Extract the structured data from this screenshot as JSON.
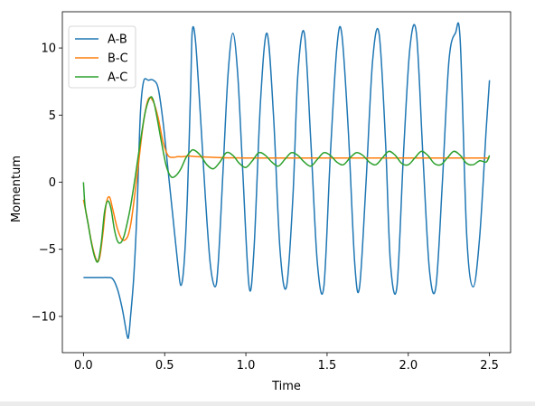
{
  "chart_data": {
    "type": "line",
    "title": "",
    "xlabel": "Time",
    "ylabel": "Momentum",
    "xlim": [
      -0.13,
      2.63
    ],
    "ylim": [
      -12.7,
      12.7
    ],
    "xticks": [
      0.0,
      0.5,
      1.0,
      1.5,
      2.0,
      2.5
    ],
    "xtick_labels": [
      "0.0",
      "0.5",
      "1.0",
      "1.5",
      "2.0",
      "2.5"
    ],
    "yticks": [
      -10,
      -5,
      0,
      5,
      10
    ],
    "ytick_labels": [
      "−10",
      "−5",
      "0",
      "5",
      "10"
    ],
    "legend_position": "top-left",
    "series": [
      {
        "name": "A-B",
        "color": "#1f77b4",
        "x": [
          0.0,
          0.05,
          0.1,
          0.15,
          0.18,
          0.21,
          0.24,
          0.27,
          0.28,
          0.29,
          0.31,
          0.33,
          0.35,
          0.37,
          0.4,
          0.43,
          0.46,
          0.49,
          0.52,
          0.55,
          0.58,
          0.6,
          0.62,
          0.64,
          0.66,
          0.67,
          0.69,
          0.72,
          0.75,
          0.78,
          0.81,
          0.83,
          0.86,
          0.89,
          0.92,
          0.95,
          0.98,
          1.02,
          1.05,
          1.09,
          1.13,
          1.17,
          1.21,
          1.25,
          1.29,
          1.32,
          1.36,
          1.4,
          1.44,
          1.48,
          1.52,
          1.56,
          1.59,
          1.63,
          1.67,
          1.7,
          1.74,
          1.78,
          1.82,
          1.86,
          1.89,
          1.93,
          1.97,
          2.01,
          2.05,
          2.09,
          2.13,
          2.17,
          2.21,
          2.25,
          2.29,
          2.32,
          2.36,
          2.4,
          2.44,
          2.48,
          2.5
        ],
        "y": [
          -7.1,
          -7.1,
          -7.1,
          -7.1,
          -7.2,
          -8.0,
          -9.5,
          -11.5,
          -11.3,
          -10.0,
          -7.0,
          -2.0,
          5.0,
          7.5,
          7.6,
          7.6,
          7.0,
          4.5,
          1.0,
          -2.5,
          -6.0,
          -7.7,
          -6.0,
          -1.0,
          7.0,
          11.3,
          10.5,
          5.0,
          -1.0,
          -6.0,
          -7.8,
          -6.0,
          1.0,
          8.0,
          11.1,
          8.0,
          1.0,
          -7.8,
          -5.0,
          6.0,
          11.1,
          5.0,
          -5.0,
          -7.8,
          -1.0,
          8.0,
          11.1,
          3.0,
          -6.0,
          -7.8,
          2.0,
          10.0,
          11.1,
          4.0,
          -6.0,
          -7.8,
          0.0,
          9.0,
          11.1,
          3.0,
          -6.0,
          -7.8,
          2.0,
          10.0,
          11.1,
          2.0,
          -6.5,
          -7.8,
          0.0,
          9.0,
          11.1,
          10.5,
          -4.0,
          -7.8,
          -4.0,
          4.0,
          7.6
        ]
      },
      {
        "name": "B-C",
        "color": "#ff7f0e",
        "x": [
          0.0,
          0.02,
          0.05,
          0.08,
          0.1,
          0.12,
          0.14,
          0.16,
          0.18,
          0.21,
          0.24,
          0.27,
          0.29,
          0.31,
          0.34,
          0.37,
          0.4,
          0.43,
          0.46,
          0.49,
          0.52,
          0.55,
          0.58,
          0.61,
          0.65,
          0.7,
          0.8,
          1.0,
          1.5,
          2.0,
          2.5
        ],
        "y": [
          -1.3,
          -2.5,
          -4.5,
          -5.8,
          -5.6,
          -3.8,
          -1.6,
          -1.1,
          -2.0,
          -3.5,
          -4.3,
          -4.1,
          -3.2,
          -1.5,
          1.5,
          4.5,
          6.2,
          6.0,
          4.8,
          3.0,
          2.0,
          1.85,
          1.9,
          1.9,
          1.95,
          1.9,
          1.85,
          1.8,
          1.8,
          1.8,
          1.8
        ]
      },
      {
        "name": "A-C",
        "color": "#2ca02c",
        "x": [
          0.0,
          0.01,
          0.03,
          0.05,
          0.07,
          0.09,
          0.11,
          0.13,
          0.15,
          0.17,
          0.19,
          0.21,
          0.23,
          0.25,
          0.27,
          0.29,
          0.32,
          0.35,
          0.38,
          0.41,
          0.43,
          0.45,
          0.48,
          0.51,
          0.54,
          0.57,
          0.6,
          0.63,
          0.66,
          0.68,
          0.72,
          0.76,
          0.8,
          0.84,
          0.88,
          0.92,
          0.96,
          1.0,
          1.04,
          1.08,
          1.12,
          1.16,
          1.2,
          1.24,
          1.28,
          1.32,
          1.36,
          1.4,
          1.44,
          1.48,
          1.52,
          1.56,
          1.6,
          1.64,
          1.68,
          1.72,
          1.76,
          1.8,
          1.84,
          1.88,
          1.92,
          1.96,
          2.0,
          2.04,
          2.08,
          2.12,
          2.16,
          2.2,
          2.24,
          2.28,
          2.32,
          2.36,
          2.4,
          2.44,
          2.48,
          2.5
        ],
        "y": [
          0.0,
          -1.8,
          -3.2,
          -4.6,
          -5.6,
          -5.9,
          -4.5,
          -2.2,
          -1.4,
          -2.0,
          -3.5,
          -4.4,
          -4.5,
          -4.0,
          -3.0,
          -1.8,
          0.5,
          3.0,
          5.2,
          6.3,
          6.1,
          5.0,
          3.0,
          1.2,
          0.4,
          0.5,
          1.0,
          1.8,
          2.3,
          2.4,
          2.0,
          1.3,
          1.0,
          1.5,
          2.2,
          2.0,
          1.4,
          1.1,
          1.6,
          2.2,
          2.0,
          1.5,
          1.2,
          1.7,
          2.2,
          2.0,
          1.5,
          1.2,
          1.7,
          2.2,
          2.0,
          1.5,
          1.3,
          1.8,
          2.2,
          2.0,
          1.5,
          1.3,
          1.8,
          2.3,
          2.0,
          1.4,
          1.3,
          1.8,
          2.3,
          2.0,
          1.4,
          1.3,
          1.8,
          2.3,
          2.0,
          1.4,
          1.3,
          1.6,
          1.5,
          2.0
        ]
      }
    ]
  }
}
